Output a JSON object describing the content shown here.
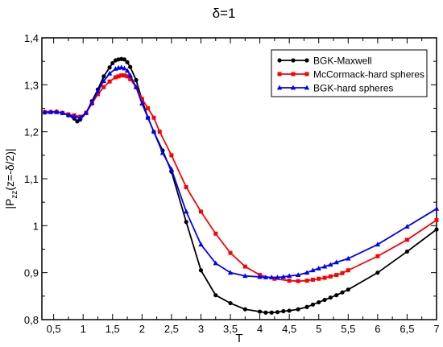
{
  "chart_data": {
    "type": "line",
    "title": "δ=1",
    "xlabel": "T",
    "ylabel_main": "|P",
    "ylabel_sub": "zz",
    "ylabel_rest": "(z=-δ/2)|",
    "xlim": [
      0.3,
      7.0
    ],
    "ylim": [
      0.8,
      1.4
    ],
    "xticks": [
      0.5,
      1,
      1.5,
      2,
      2.5,
      3,
      3.5,
      4,
      4.5,
      5,
      5.5,
      6,
      6.5,
      7
    ],
    "xtick_labels": [
      "0,5",
      "1",
      "1,5",
      "2",
      "2,5",
      "3",
      "3,5",
      "4",
      "4,5",
      "5",
      "5,5",
      "6",
      "6,5",
      "7"
    ],
    "yticks": [
      0.8,
      0.9,
      1.0,
      1.1,
      1.2,
      1.3,
      1.4
    ],
    "ytick_labels": [
      "0,8",
      "0,9",
      "1",
      "1,1",
      "1,2",
      "1,3",
      "1,4"
    ],
    "legend_position": "top-right",
    "grid": false,
    "series": [
      {
        "name": "BGK-Maxwell",
        "color": "#000000",
        "marker": "circle",
        "x": [
          0.35,
          0.45,
          0.55,
          0.65,
          0.75,
          0.85,
          0.9,
          0.95,
          1.05,
          1.15,
          1.25,
          1.35,
          1.45,
          1.5,
          1.55,
          1.6,
          1.65,
          1.7,
          1.75,
          1.8,
          1.9,
          2.0,
          2.1,
          2.2,
          2.35,
          2.5,
          2.75,
          3.0,
          3.25,
          3.5,
          3.75,
          4.0,
          4.1,
          4.2,
          4.3,
          4.4,
          4.5,
          4.65,
          4.8,
          4.9,
          5.0,
          5.1,
          5.2,
          5.3,
          5.4,
          5.5,
          6.0,
          6.5,
          7.0
        ],
        "y": [
          1.241,
          1.242,
          1.243,
          1.24,
          1.235,
          1.228,
          1.222,
          1.226,
          1.24,
          1.265,
          1.29,
          1.318,
          1.337,
          1.346,
          1.352,
          1.354,
          1.355,
          1.354,
          1.348,
          1.338,
          1.31,
          1.268,
          1.23,
          1.2,
          1.16,
          1.115,
          1.008,
          0.905,
          0.852,
          0.835,
          0.822,
          0.817,
          0.815,
          0.815,
          0.816,
          0.818,
          0.819,
          0.822,
          0.827,
          0.832,
          0.837,
          0.842,
          0.847,
          0.852,
          0.858,
          0.864,
          0.9,
          0.945,
          0.992
        ]
      },
      {
        "name": "McCormack-hard spheres",
        "color": "#ff0000",
        "marker": "square",
        "x": [
          0.35,
          0.45,
          0.55,
          0.65,
          0.75,
          0.85,
          0.95,
          1.05,
          1.15,
          1.25,
          1.35,
          1.45,
          1.55,
          1.6,
          1.65,
          1.7,
          1.75,
          1.8,
          1.9,
          2.0,
          2.1,
          2.2,
          2.3,
          2.5,
          2.75,
          3.0,
          3.25,
          3.5,
          3.75,
          4.0,
          4.25,
          4.5,
          4.65,
          4.8,
          4.9,
          5.0,
          5.1,
          5.2,
          5.3,
          5.4,
          5.5,
          6.0,
          6.5,
          7.0
        ],
        "y": [
          1.242,
          1.242,
          1.242,
          1.24,
          1.237,
          1.235,
          1.232,
          1.24,
          1.26,
          1.28,
          1.295,
          1.307,
          1.316,
          1.318,
          1.32,
          1.32,
          1.318,
          1.312,
          1.295,
          1.27,
          1.25,
          1.23,
          1.2,
          1.15,
          1.082,
          1.03,
          0.983,
          0.942,
          0.913,
          0.895,
          0.887,
          0.883,
          0.882,
          0.883,
          0.885,
          0.887,
          0.889,
          0.892,
          0.895,
          0.899,
          0.905,
          0.935,
          0.97,
          1.012
        ]
      },
      {
        "name": "BGK-hard spheres",
        "color": "#0000ff",
        "marker": "triangle",
        "x": [
          0.35,
          0.45,
          0.55,
          0.65,
          0.75,
          0.85,
          0.95,
          1.05,
          1.15,
          1.25,
          1.35,
          1.45,
          1.55,
          1.6,
          1.65,
          1.7,
          1.75,
          1.8,
          1.9,
          2.0,
          2.1,
          2.2,
          2.35,
          2.5,
          2.75,
          3.0,
          3.25,
          3.5,
          3.75,
          4.0,
          4.1,
          4.2,
          4.3,
          4.4,
          4.5,
          4.65,
          4.8,
          4.9,
          5.0,
          5.1,
          5.2,
          5.3,
          5.5,
          6.0,
          6.5,
          7.0
        ],
        "y": [
          1.242,
          1.242,
          1.242,
          1.24,
          1.236,
          1.232,
          1.23,
          1.24,
          1.262,
          1.286,
          1.308,
          1.324,
          1.334,
          1.336,
          1.337,
          1.335,
          1.33,
          1.32,
          1.295,
          1.26,
          1.23,
          1.2,
          1.155,
          1.12,
          1.03,
          0.96,
          0.92,
          0.9,
          0.893,
          0.891,
          0.89,
          0.89,
          0.89,
          0.891,
          0.893,
          0.895,
          0.9,
          0.905,
          0.909,
          0.913,
          0.917,
          0.922,
          0.93,
          0.96,
          0.998,
          1.036
        ]
      }
    ]
  }
}
